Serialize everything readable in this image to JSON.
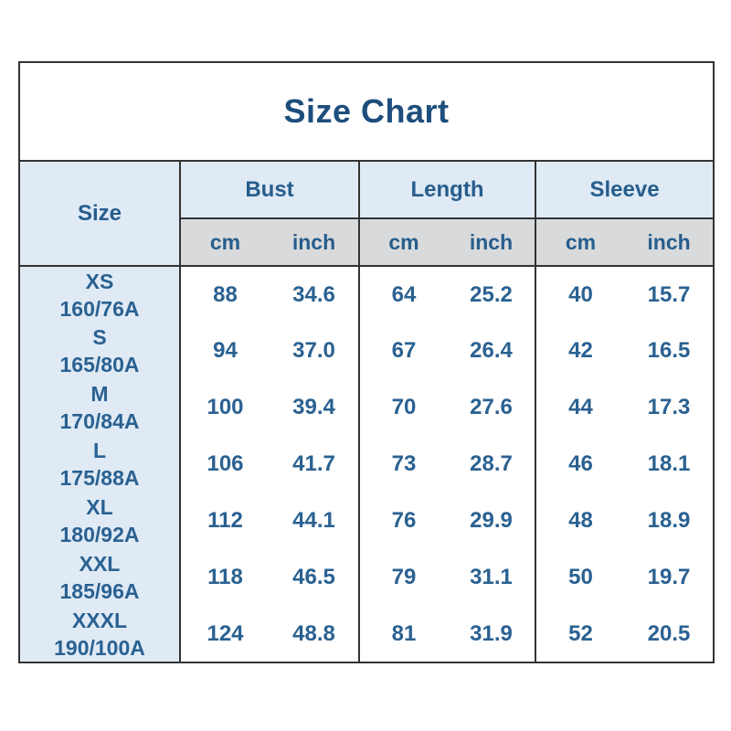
{
  "title": "Size Chart",
  "colors": {
    "title_text": "#1d4e7c",
    "header_text": "#265d8d",
    "value_text": "#2a6191",
    "header_bg": "#dfeaf5",
    "subheader_bg": "#d9dadb",
    "cell_bg": "#ffffff",
    "border": "#333333"
  },
  "chart_data": {
    "type": "table",
    "title": "Size Chart",
    "size_header": "Size",
    "column_groups": [
      {
        "label": "Bust"
      },
      {
        "label": "Length"
      },
      {
        "label": "Sleeve"
      }
    ],
    "units": {
      "cm": "cm",
      "inch": "inch"
    },
    "columns": [
      "Size",
      "Bust cm",
      "Bust inch",
      "Length cm",
      "Length inch",
      "Sleeve cm",
      "Sleeve inch"
    ],
    "rows": [
      {
        "size": "XS",
        "spec": "160/76A",
        "values": [
          "88",
          "34.6",
          "64",
          "25.2",
          "40",
          "15.7"
        ]
      },
      {
        "size": "S",
        "spec": "165/80A",
        "values": [
          "94",
          "37.0",
          "67",
          "26.4",
          "42",
          "16.5"
        ]
      },
      {
        "size": "M",
        "spec": "170/84A",
        "values": [
          "100",
          "39.4",
          "70",
          "27.6",
          "44",
          "17.3"
        ]
      },
      {
        "size": "L",
        "spec": "175/88A",
        "values": [
          "106",
          "41.7",
          "73",
          "28.7",
          "46",
          "18.1"
        ]
      },
      {
        "size": "XL",
        "spec": "180/92A",
        "values": [
          "112",
          "44.1",
          "76",
          "29.9",
          "48",
          "18.9"
        ]
      },
      {
        "size": "XXL",
        "spec": "185/96A",
        "values": [
          "118",
          "46.5",
          "79",
          "31.1",
          "50",
          "19.7"
        ]
      },
      {
        "size": "XXXL",
        "spec": "190/100A",
        "values": [
          "124",
          "48.8",
          "81",
          "31.9",
          "52",
          "20.5"
        ]
      }
    ]
  }
}
